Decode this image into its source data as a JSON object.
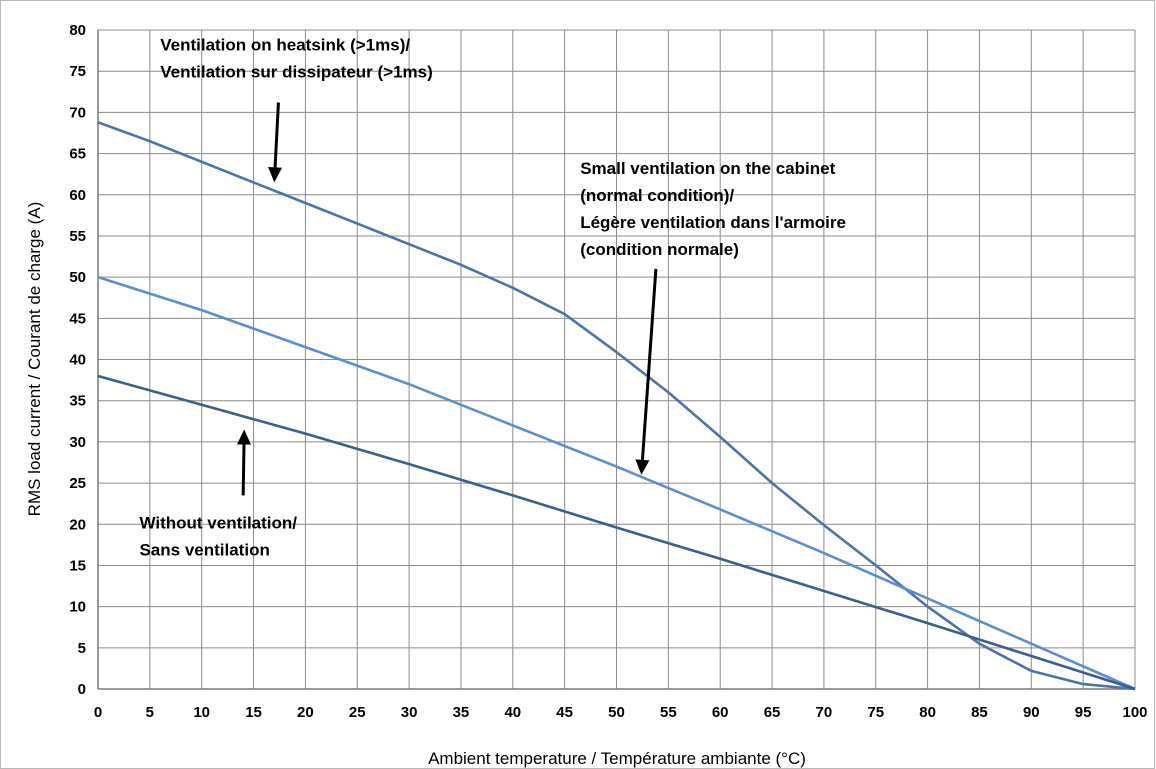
{
  "chart_data": {
    "type": "line",
    "xlabel": "Ambient temperature / Température ambiante (°C)",
    "ylabel": "RMS load current / Courant de charge (A)",
    "xlim": [
      0,
      100
    ],
    "ylim": [
      0,
      80
    ],
    "xticks": [
      0,
      5,
      10,
      15,
      20,
      25,
      30,
      35,
      40,
      45,
      50,
      55,
      60,
      65,
      70,
      75,
      80,
      85,
      90,
      95,
      100
    ],
    "yticks": [
      0,
      5,
      10,
      15,
      20,
      25,
      30,
      35,
      40,
      45,
      50,
      55,
      60,
      65,
      70,
      75,
      80
    ],
    "grid": true,
    "series": [
      {
        "color": "#4a74aa",
        "x": [
          0,
          5,
          10,
          15,
          20,
          25,
          30,
          35,
          40,
          45,
          50,
          55,
          60,
          65,
          70,
          75,
          80,
          85,
          90,
          95,
          100
        ],
        "y": [
          68.8,
          66.5,
          64.0,
          61.5,
          59.0,
          56.5,
          54.0,
          51.5,
          48.7,
          45.5,
          40.9,
          36.0,
          30.6,
          25.0,
          19.9,
          15.0,
          10.0,
          5.5,
          2.2,
          0.6,
          0
        ]
      },
      {
        "color": "#5b8dd0",
        "x": [
          0,
          10,
          20,
          30,
          40,
          50,
          60,
          70,
          80,
          90,
          100
        ],
        "y": [
          50.0,
          46.0,
          41.5,
          37.0,
          32.0,
          27.0,
          21.8,
          16.5,
          11.0,
          5.5,
          0
        ]
      },
      {
        "color": "#3b5f8e",
        "x": [
          0,
          10,
          20,
          30,
          40,
          50,
          60,
          70,
          80,
          90,
          100
        ],
        "y": [
          38.0,
          34.5,
          31.0,
          27.3,
          23.5,
          19.6,
          15.8,
          11.9,
          8.0,
          4.0,
          0
        ]
      }
    ],
    "annotations": [
      {
        "lines": [
          "Ventilation  on heatsink (>1ms)/",
          "Ventilation sur dissipateur (>1ms)"
        ],
        "text_at": [
          6,
          77.5
        ],
        "arrow_from": [
          17.4,
          71.2
        ],
        "arrow_to": [
          17.0,
          61.5
        ]
      },
      {
        "lines": [
          "Small ventilation  on the cabinet",
          "(normal condition)/",
          "Légère ventilation dans l'armoire",
          "(condition normale)"
        ],
        "text_at": [
          46.5,
          62.5
        ],
        "arrow_from": [
          53.8,
          51.0
        ],
        "arrow_to": [
          52.4,
          26.0
        ]
      },
      {
        "lines": [
          "Without ventilation/",
          "Sans ventilation"
        ],
        "text_at": [
          4,
          19.5
        ],
        "arrow_from": [
          14.0,
          23.5
        ],
        "arrow_to": [
          14.1,
          31.5
        ]
      }
    ]
  }
}
